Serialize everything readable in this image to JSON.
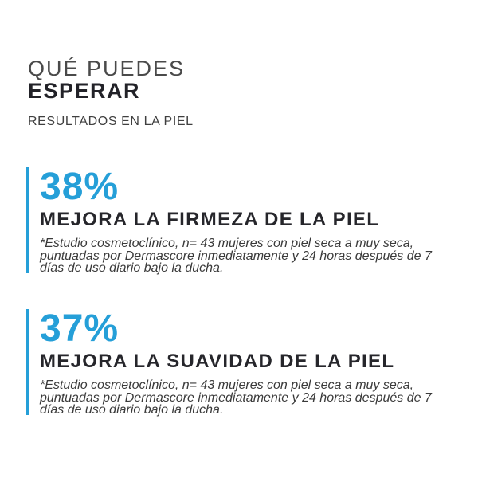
{
  "colors": {
    "accent_blue": "#259FD8",
    "heading_dark": "#26262b",
    "title_light_gray": "#4a4a4a",
    "footnote_gray": "#3a3a3a",
    "background": "#ffffff"
  },
  "header": {
    "title_line1": "QUÉ PUEDES",
    "title_line2": "ESPERAR",
    "subtitle": "RESULTADOS EN LA PIEL"
  },
  "stats": [
    {
      "value": "38%",
      "headline": "MEJORA LA FIRMEZA DE LA PIEL",
      "footnote_lines": [
        "*Estudio cosmetoclínico, n= 43 mujeres con piel seca a muy seca,",
        "puntuadas por Dermascore inmediatamente y 24 horas después de 7",
        "días de uso diario bajo la ducha."
      ]
    },
    {
      "value": "37%",
      "headline": "MEJORA LA SUAVIDAD DE LA PIEL",
      "footnote_lines": [
        "*Estudio cosmetoclínico, n= 43 mujeres con piel seca a muy seca,",
        "puntuadas por Dermascore inmediatamente y 24 horas después de 7",
        "días de uso diario bajo la ducha."
      ]
    }
  ]
}
